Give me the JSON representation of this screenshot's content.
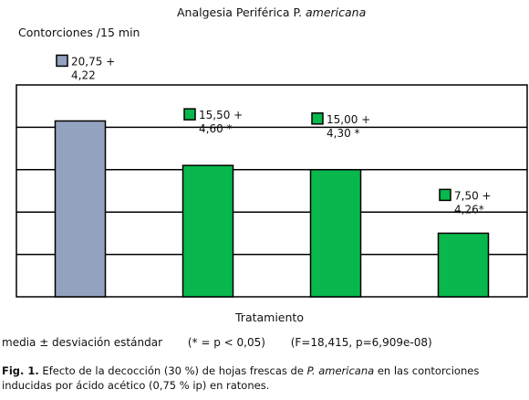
{
  "chart_data": {
    "type": "bar",
    "title": "Analgesia Periférica P. ",
    "title_italic": "americana",
    "ylabel": "Contorciones /15 min",
    "xlabel": "Tratamiento",
    "categories": [
      "",
      "",
      "",
      ""
    ],
    "values": [
      20.75,
      15.5,
      15.0,
      7.5
    ],
    "sd": [
      4.22,
      4.6,
      4.3,
      4.26
    ],
    "value_labels": [
      [
        "20,75 +",
        "4,22"
      ],
      [
        "15,50 +",
        "4,60 *"
      ],
      [
        "15,00 +",
        "4,30 *"
      ],
      [
        "7,50 +",
        "4,26*"
      ]
    ],
    "ylim": [
      0,
      25
    ],
    "grid": true,
    "colors": [
      "#93a3bf",
      "#08b84c",
      "#08b84c",
      "#08b84c"
    ],
    "legend_box_colors": [
      "#93a3bf",
      "#08b84c",
      "#08b84c",
      "#08b84c"
    ]
  },
  "footer": {
    "note1": "media ± desviación estándar",
    "note2": "(* = p < 0,05)",
    "note3": "(F=18,415, p=6,909e-08)"
  },
  "caption": {
    "label": "Fig. 1.",
    "text_1": " Efecto de la decocción (30 %) de hojas frescas de ",
    "italic": "P. americana",
    "text_2": " en las contorciones inducidas por ácido acético (0,75 % ip) en ratones."
  }
}
